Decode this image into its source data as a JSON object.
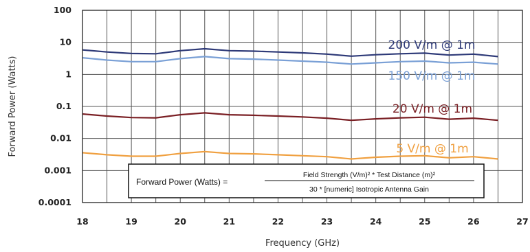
{
  "chart_data": {
    "type": "line",
    "xlabel": "Frequency (GHz)",
    "ylabel": "Forward Power (Watts)",
    "xlim": [
      18,
      27
    ],
    "ylim": [
      0.0001,
      100
    ],
    "yscale": "log",
    "grid": true,
    "x_ticks": [
      "18",
      "19",
      "20",
      "21",
      "22",
      "23",
      "24",
      "25",
      "26",
      "27"
    ],
    "y_ticks": [
      "100",
      "10",
      "1",
      "0.1",
      "0.01",
      "0.001",
      "0.0001"
    ],
    "series": [
      {
        "name": "200 V/m @ 1m",
        "color": "#2e3a78",
        "x": [
          18,
          18.5,
          19,
          19.5,
          20,
          20.5,
          21,
          21.5,
          22,
          22.5,
          23,
          23.5,
          24,
          24.5,
          25,
          25.5,
          26,
          26.5
        ],
        "values": [
          5.8,
          5.0,
          4.5,
          4.4,
          5.5,
          6.3,
          5.5,
          5.3,
          5.0,
          4.7,
          4.3,
          3.7,
          4.1,
          4.4,
          4.6,
          4.0,
          4.3,
          3.6
        ]
      },
      {
        "name": "150 V/m @ 1m",
        "color": "#7aa0d6",
        "x": [
          18,
          18.5,
          19,
          19.5,
          20,
          20.5,
          21,
          21.5,
          22,
          22.5,
          23,
          23.5,
          24,
          24.5,
          25,
          25.5,
          26,
          26.5
        ],
        "values": [
          3.3,
          2.8,
          2.5,
          2.5,
          3.1,
          3.6,
          3.1,
          3.0,
          2.8,
          2.6,
          2.4,
          2.1,
          2.3,
          2.5,
          2.6,
          2.3,
          2.4,
          2.1
        ]
      },
      {
        "name": "20 V/m @ 1m",
        "color": "#7a1f24",
        "x": [
          18,
          18.5,
          19,
          19.5,
          20,
          20.5,
          21,
          21.5,
          22,
          22.5,
          23,
          23.5,
          24,
          24.5,
          25,
          25.5,
          26,
          26.5
        ],
        "values": [
          0.058,
          0.05,
          0.045,
          0.044,
          0.055,
          0.063,
          0.055,
          0.053,
          0.05,
          0.047,
          0.043,
          0.037,
          0.041,
          0.044,
          0.046,
          0.04,
          0.043,
          0.037
        ]
      },
      {
        "name": "5 V/m @ 1m",
        "color": "#f0a040",
        "x": [
          18,
          18.5,
          19,
          19.5,
          20,
          20.5,
          21,
          21.5,
          22,
          22.5,
          23,
          23.5,
          24,
          24.5,
          25,
          25.5,
          26,
          26.5
        ],
        "values": [
          0.0036,
          0.0031,
          0.0028,
          0.0028,
          0.0034,
          0.0039,
          0.0034,
          0.0033,
          0.0031,
          0.0029,
          0.0027,
          0.0023,
          0.0026,
          0.0028,
          0.0029,
          0.0025,
          0.0027,
          0.0023
        ]
      }
    ],
    "annotation": {
      "lhs": "Forward Power (Watts) =",
      "numerator": "Field Strength (V/m)² * Test Distance (m)²",
      "denominator": "30 * [numeric] Isotropic Antenna Gain"
    }
  }
}
